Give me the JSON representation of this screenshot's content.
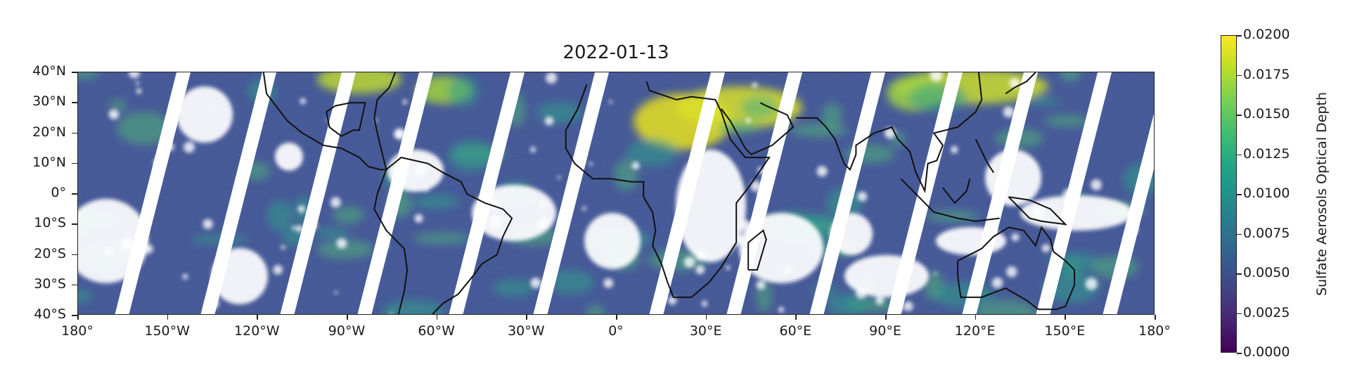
{
  "title": "2022-01-13",
  "map": {
    "lon_range": [
      -180,
      180
    ],
    "lat_range": [
      -40,
      40
    ],
    "y_ticks": [
      {
        "lat": 40,
        "label": "40°N"
      },
      {
        "lat": 30,
        "label": "30°N"
      },
      {
        "lat": 20,
        "label": "20°N"
      },
      {
        "lat": 10,
        "label": "10°N"
      },
      {
        "lat": 0,
        "label": "0°"
      },
      {
        "lat": -10,
        "label": "10°S"
      },
      {
        "lat": -20,
        "label": "20°S"
      },
      {
        "lat": -30,
        "label": "30°S"
      },
      {
        "lat": -40,
        "label": "40°S"
      }
    ],
    "x_ticks": [
      {
        "lon": -180,
        "label": "180°"
      },
      {
        "lon": -150,
        "label": "150°W"
      },
      {
        "lon": -120,
        "label": "120°W"
      },
      {
        "lon": -90,
        "label": "90°W"
      },
      {
        "lon": -60,
        "label": "60°W"
      },
      {
        "lon": -30,
        "label": "30°W"
      },
      {
        "lon": 0,
        "label": "0°"
      },
      {
        "lon": 30,
        "label": "30°E"
      },
      {
        "lon": 60,
        "label": "60°E"
      },
      {
        "lon": 90,
        "label": "90°E"
      },
      {
        "lon": 120,
        "label": "120°E"
      },
      {
        "lon": 150,
        "label": "150°E"
      },
      {
        "lon": 180,
        "label": "180°"
      }
    ]
  },
  "colorbar": {
    "label": "Sulfate Aerosols Optical Depth",
    "colormap": "viridis",
    "range": [
      0,
      0.02
    ],
    "ticks": [
      "0.0000",
      "0.0025",
      "0.0050",
      "0.0075",
      "0.0100",
      "0.0125",
      "0.0150",
      "0.0175",
      "0.0200"
    ]
  },
  "colors": {
    "background_field": "#3b4d8f",
    "no_data": "#ffffff",
    "coastline": "#111111",
    "high_value": "#e8e020",
    "mid_value": "#2f9e8a"
  }
}
